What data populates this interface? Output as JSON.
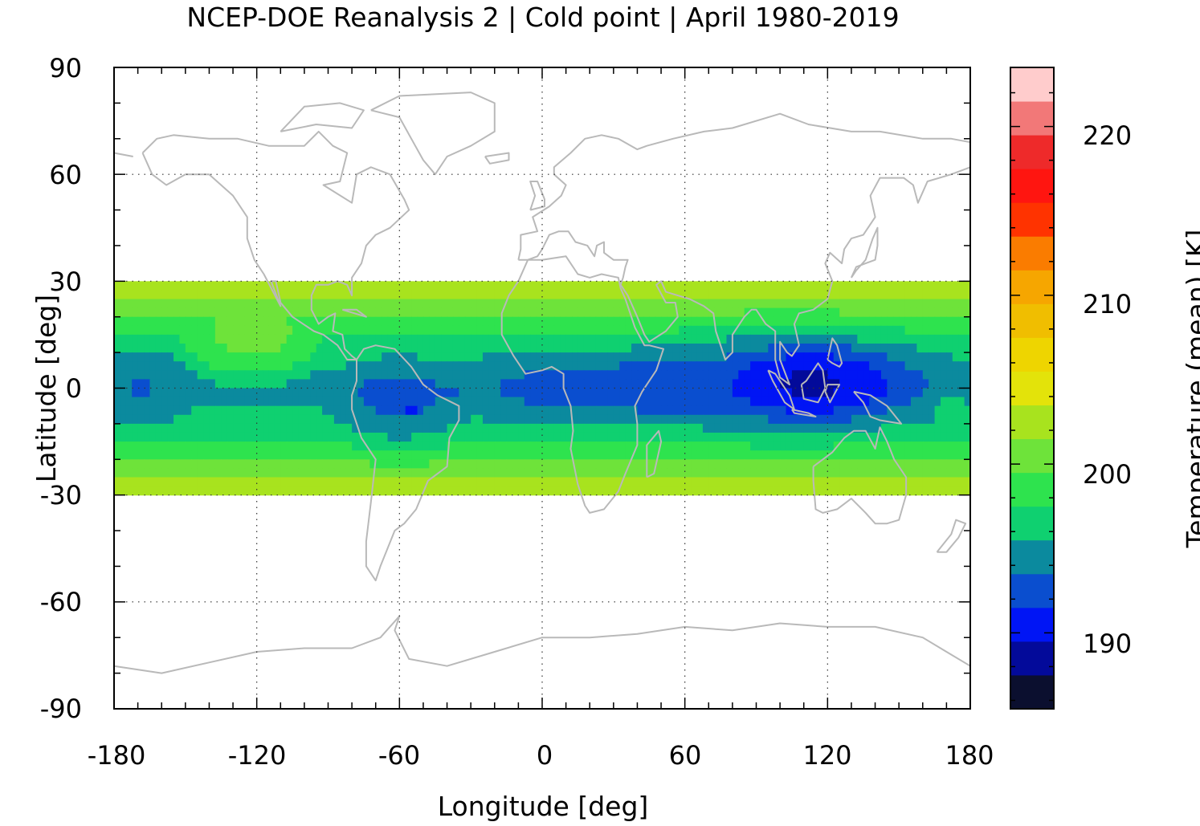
{
  "chart_data": {
    "type": "heatmap",
    "title": "NCEP-DOE Reanalysis 2 | Cold point | April 1980-2019",
    "xlabel": "Longitude [deg]",
    "ylabel": "Latitude [deg]",
    "colorbar_label": "Temperature (mean) [K]",
    "xlim": [
      -180,
      180
    ],
    "ylim": [
      -90,
      90
    ],
    "x_ticks": [
      "-180",
      "-120",
      "-60",
      "0",
      "60",
      "120",
      "180"
    ],
    "y_ticks": [
      "90",
      "60",
      "30",
      "0",
      "-30",
      "-60",
      "-90"
    ],
    "colorbar_ticks": [
      "220",
      "210",
      "200",
      "190"
    ],
    "colorbar_range": [
      185.5,
      223.5
    ],
    "grid": true,
    "data_region": {
      "lat_range": [
        -30,
        30
      ],
      "lon_range": [
        -180,
        180
      ]
    },
    "colorbar_colors": [
      "#0b0f2f",
      "#030a9a",
      "#0015f5",
      "#0a4ecf",
      "#0b8a9e",
      "#0fd070",
      "#2ee34e",
      "#6ee33a",
      "#a8e31e",
      "#e3e30a",
      "#eed500",
      "#f0be00",
      "#f6a600",
      "#fa7c00",
      "#ff3300",
      "#ff1510",
      "#ee2a2a",
      "#f27878",
      "#ffcccc"
    ],
    "approx_field_description_levels": {
      "deep_cold_core": 190.5,
      "cold_core": 193,
      "moderate": 197,
      "warm_edge": 204
    }
  }
}
